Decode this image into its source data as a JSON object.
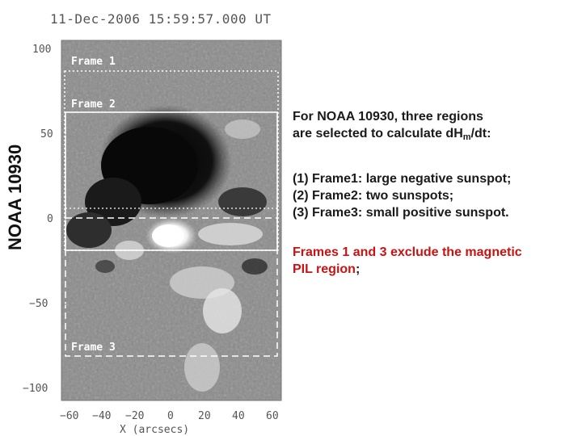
{
  "figure": {
    "timestamp": "11-Dec-2006 15:59:57.000 UT",
    "region_label": "NOAA 10930",
    "frames": [
      {
        "label": "Frame 1"
      },
      {
        "label": "Frame 2"
      },
      {
        "label": "Frame 3"
      }
    ],
    "y_ticks": [
      "100",
      "50",
      "0",
      "−50",
      "−100"
    ],
    "x_ticks": [
      "−60",
      "−40",
      "−20",
      "0",
      "20",
      "40",
      "60"
    ],
    "x_axis_label": "X (arcsecs)"
  },
  "panel": {
    "intro_prefix": "For NOAA 10930, three regions",
    "intro_line2_a": "are selected to calculate dH",
    "intro_sub": "m",
    "intro_line2_b": "/dt:",
    "items": [
      "(1) Frame1: large negative sunspot;",
      "(2) Frame2: two sunspots;",
      "(3) Frame3: small positive sunspot."
    ],
    "note_line1": "Frames 1 and 3 exclude the magnetic",
    "note_line2_red": "PIL region",
    "note_line2_end": ";"
  },
  "colors": {
    "note_red": "#cc1111",
    "frame_white": "#ffffff"
  }
}
